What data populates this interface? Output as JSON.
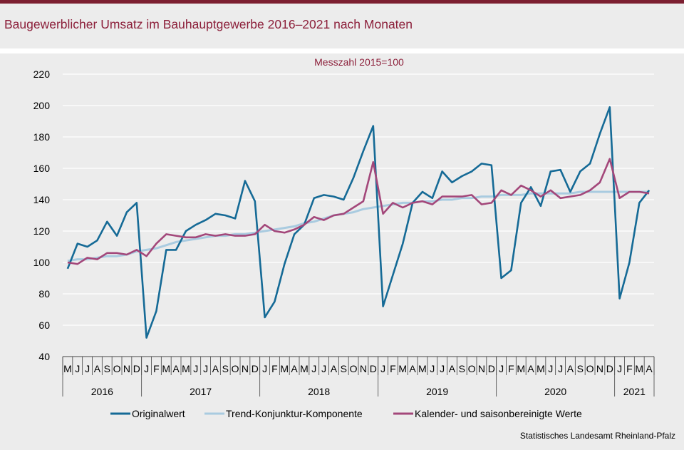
{
  "title": "Baugewerblicher Umsatz im Bauhauptgewerbe 2016–2021 nach Monaten",
  "source": "Statistisches Landesamt Rheinland-Pfalz",
  "colors": {
    "accent": "#7c1f31",
    "title": "#8c1f3a",
    "background": "#ececec",
    "original": "#156a96",
    "trend": "#a9cbe0",
    "adjusted": "#a3477a"
  },
  "chart_data": {
    "type": "line",
    "subtitle": "Messzahl 2015=100",
    "ylim": [
      40,
      220
    ],
    "yticks": [
      40,
      60,
      80,
      100,
      120,
      140,
      160,
      180,
      200,
      220
    ],
    "grid": "horizontal",
    "legend_position": "bottom",
    "x": [
      "2016-05",
      "2016-06",
      "2016-07",
      "2016-08",
      "2016-09",
      "2016-10",
      "2016-11",
      "2016-12",
      "2017-01",
      "2017-02",
      "2017-03",
      "2017-04",
      "2017-05",
      "2017-06",
      "2017-07",
      "2017-08",
      "2017-09",
      "2017-10",
      "2017-11",
      "2017-12",
      "2018-01",
      "2018-02",
      "2018-03",
      "2018-04",
      "2018-05",
      "2018-06",
      "2018-07",
      "2018-08",
      "2018-09",
      "2018-10",
      "2018-11",
      "2018-12",
      "2019-01",
      "2019-02",
      "2019-03",
      "2019-04",
      "2019-05",
      "2019-06",
      "2019-07",
      "2019-08",
      "2019-09",
      "2019-10",
      "2019-11",
      "2019-12",
      "2020-01",
      "2020-02",
      "2020-03",
      "2020-04",
      "2020-05",
      "2020-06",
      "2020-07",
      "2020-08",
      "2020-09",
      "2020-10",
      "2020-11",
      "2020-12",
      "2021-01",
      "2021-02",
      "2021-03",
      "2021-04"
    ],
    "month_labels": [
      "M",
      "J",
      "J",
      "A",
      "S",
      "O",
      "N",
      "D",
      "J",
      "F",
      "M",
      "A",
      "M",
      "J",
      "J",
      "A",
      "S",
      "O",
      "N",
      "D",
      "J",
      "F",
      "M",
      "A",
      "M",
      "J",
      "J",
      "A",
      "S",
      "O",
      "N",
      "D",
      "J",
      "F",
      "M",
      "A",
      "M",
      "J",
      "J",
      "A",
      "S",
      "O",
      "N",
      "D",
      "J",
      "F",
      "M",
      "A",
      "M",
      "J",
      "J",
      "A",
      "S",
      "O",
      "N",
      "D",
      "J",
      "F",
      "M",
      "A"
    ],
    "year_groups": [
      {
        "label": "2016",
        "months": 8
      },
      {
        "label": "2017",
        "months": 12
      },
      {
        "label": "2018",
        "months": 12
      },
      {
        "label": "2019",
        "months": 12
      },
      {
        "label": "2020",
        "months": 12
      },
      {
        "label": "2021",
        "months": 4
      }
    ],
    "series": [
      {
        "name": "Originalwert",
        "color": "#156a96",
        "values": [
          96,
          112,
          110,
          114,
          126,
          117,
          132,
          138,
          52,
          69,
          108,
          108,
          120,
          124,
          127,
          131,
          130,
          128,
          152,
          139,
          65,
          75,
          99,
          118,
          124,
          141,
          143,
          142,
          140,
          154,
          171,
          187,
          72,
          92,
          112,
          138,
          145,
          141,
          158,
          151,
          155,
          158,
          163,
          162,
          90,
          95,
          138,
          148,
          136,
          158,
          159,
          145,
          158,
          163,
          182,
          199,
          77,
          100,
          138,
          146
        ]
      },
      {
        "name": "Trend-Konjunktur-Komponente",
        "color": "#a9cbe0",
        "values": [
          101,
          102,
          102,
          103,
          104,
          104,
          105,
          107,
          108,
          109,
          111,
          113,
          114,
          115,
          116,
          117,
          117,
          118,
          118,
          119,
          120,
          121,
          122,
          123,
          125,
          126,
          128,
          130,
          131,
          132,
          134,
          135,
          136,
          137,
          138,
          138,
          139,
          139,
          140,
          140,
          141,
          141,
          142,
          142,
          143,
          143,
          143,
          144,
          144,
          144,
          144,
          144,
          145,
          145,
          145,
          145,
          145,
          145,
          145,
          145
        ]
      },
      {
        "name": "Kalender- und saisonbereinigte Werte",
        "color": "#a3477a",
        "values": [
          100,
          99,
          103,
          102,
          106,
          106,
          105,
          108,
          104,
          112,
          118,
          117,
          116,
          116,
          118,
          117,
          118,
          117,
          117,
          118,
          124,
          120,
          119,
          121,
          124,
          129,
          127,
          130,
          131,
          135,
          139,
          164,
          131,
          138,
          135,
          138,
          139,
          137,
          142,
          142,
          142,
          143,
          137,
          138,
          146,
          143,
          149,
          146,
          142,
          146,
          141,
          142,
          143,
          146,
          151,
          166,
          141,
          145,
          145,
          144
        ]
      }
    ]
  }
}
